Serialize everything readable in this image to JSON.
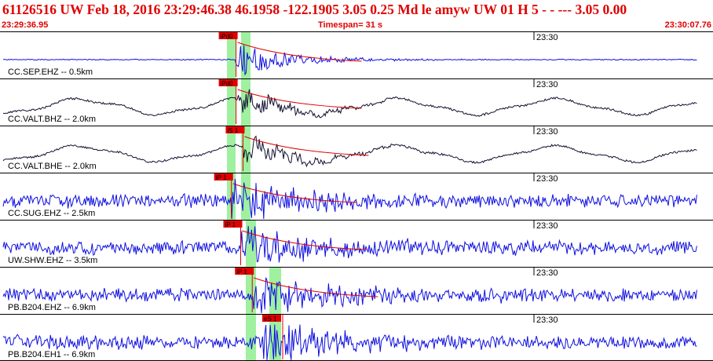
{
  "header": {
    "event_line": "61126516 UW Feb 18, 2016 23:29:46.38   46.1958 -122.1905  3.05 0.25 Md le     amyw     UW 01 H    5   -  - ---   3.05 0.00",
    "start_time": "23:29:36.95",
    "timespan": "Timespan=  31 s",
    "end_time": "23:30:07.76"
  },
  "colors": {
    "header_text": "#e00000",
    "trace_high_rate": "#1010e0",
    "trace_broadband": "#101030",
    "pick": "#e00000",
    "window_highlight": "#9ff09f"
  },
  "channels": [
    {
      "label": "CC.SEP.EHZ -- 0.5km",
      "minute_label": "23:30",
      "pick": "iPd0",
      "pick_time_s": 10.2,
      "second_pick": "",
      "trace_color": "blue",
      "style": "quiet",
      "seed": 11,
      "amp": 0.1
    },
    {
      "label": "CC.VALT.BHZ -- 2.0km",
      "minute_label": "23:30",
      "pick": "iPd0",
      "pick_time_s": 10.2,
      "second_pick": "",
      "trace_color": "dark",
      "style": "swell",
      "seed": 23,
      "amp": 0.55
    },
    {
      "label": "CC.VALT.BHE -- 2.0km",
      "minute_label": "23:30",
      "pick": "iS 1",
      "pick_time_s": 10.5,
      "second_pick": "",
      "trace_color": "dark",
      "style": "swell",
      "seed": 37,
      "amp": 0.5
    },
    {
      "label": "CC.SUG.EHZ -- 2.5km",
      "minute_label": "23:30",
      "pick": "iP 1",
      "pick_time_s": 10.0,
      "second_pick": "",
      "trace_color": "blue",
      "style": "noisy",
      "seed": 51,
      "amp": 0.55
    },
    {
      "label": "UW.SHW.EHZ -- 3.5km",
      "minute_label": "23:30",
      "pick": "iP 1",
      "pick_time_s": 10.4,
      "second_pick": "",
      "trace_color": "blue",
      "style": "noisy",
      "seed": 67,
      "amp": 0.6
    },
    {
      "label": "PB.B204.EHZ -- 6.9km",
      "minute_label": "23:30",
      "pick": "iP 1",
      "pick_time_s": 10.9,
      "second_pick": "",
      "trace_color": "blue",
      "style": "noisy",
      "seed": 79,
      "amp": 0.55
    },
    {
      "label": "PB.B204.EH1 -- 6.9km",
      "minute_label": "23:30",
      "pick": "",
      "pick_time_s": 0,
      "second_pick": "eS 1",
      "trace_color": "blue",
      "style": "noisy",
      "seed": 97,
      "amp": 0.75
    }
  ]
}
